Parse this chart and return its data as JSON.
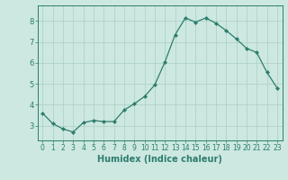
{
  "x": [
    0,
    1,
    2,
    3,
    4,
    5,
    6,
    7,
    8,
    9,
    10,
    11,
    12,
    13,
    14,
    15,
    16,
    17,
    18,
    19,
    20,
    21,
    22,
    23
  ],
  "y": [
    3.6,
    3.1,
    2.85,
    2.7,
    3.15,
    3.25,
    3.2,
    3.2,
    3.75,
    4.05,
    4.4,
    4.95,
    6.05,
    7.35,
    8.15,
    7.95,
    8.15,
    7.9,
    7.55,
    7.15,
    6.7,
    6.5,
    5.55,
    4.8
  ],
  "line_color": "#2e7d6e",
  "marker": "D",
  "marker_size": 2.0,
  "xlabel": "Humidex (Indice chaleur)",
  "xlim": [
    -0.5,
    23.5
  ],
  "ylim": [
    2.3,
    8.75
  ],
  "yticks": [
    3,
    4,
    5,
    6,
    7,
    8
  ],
  "xticks": [
    0,
    1,
    2,
    3,
    4,
    5,
    6,
    7,
    8,
    9,
    10,
    11,
    12,
    13,
    14,
    15,
    16,
    17,
    18,
    19,
    20,
    21,
    22,
    23
  ],
  "bg_color": "#cce8e0",
  "grid_color": "#aacfc6",
  "tick_label_color": "#2e7d6e",
  "line_width": 0.9,
  "font_size_xlabel": 7,
  "font_size_ticks": 5.5
}
